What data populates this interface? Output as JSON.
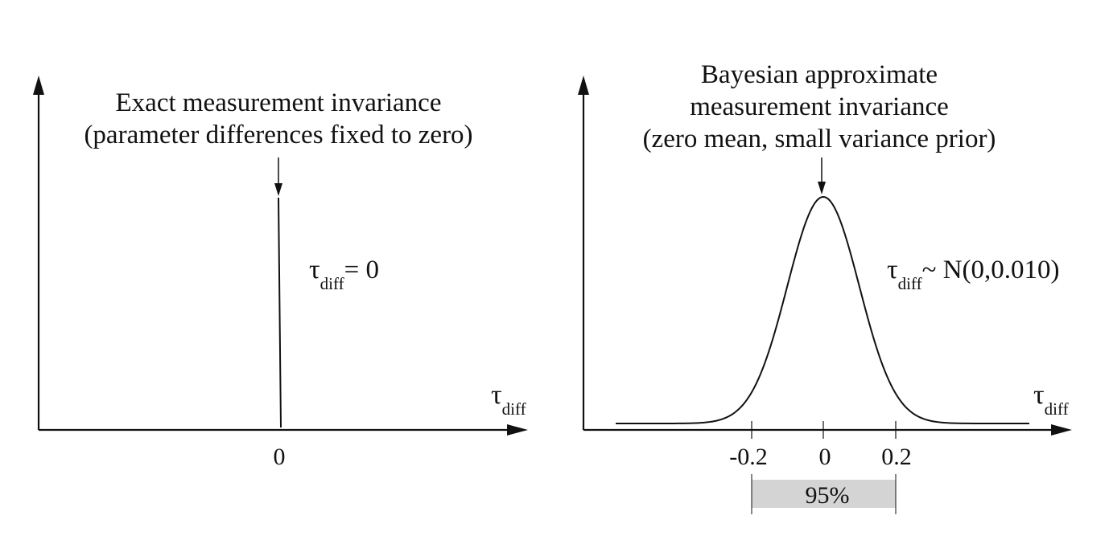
{
  "colors": {
    "ink": "#111111",
    "interval_fill": "#d4d4d4"
  },
  "left_panel": {
    "title_line1": "Exact measurement invariance",
    "title_line2": "(parameter differences fixed to zero)",
    "constraint_symbol": "τ",
    "constraint_subscript": "diff",
    "constraint_relation": "= 0",
    "axis_symbol": "τ",
    "axis_subscript": "diff",
    "tick_zero": "0"
  },
  "right_panel": {
    "title_line1": "Bayesian approximate",
    "title_line2": "measurement invariance",
    "title_line3": "(zero mean, small variance prior)",
    "prior_symbol": "τ",
    "prior_subscript": "diff",
    "prior_relation": "~ N(0,0.010)",
    "axis_symbol": "τ",
    "axis_subscript": "diff",
    "tick_minus": "-0.2",
    "tick_zero": "0",
    "tick_plus": "0.2",
    "interval_label": "95%",
    "prior_mean": 0,
    "prior_variance": 0.01,
    "interval_low": -0.2,
    "interval_high": 0.2
  }
}
